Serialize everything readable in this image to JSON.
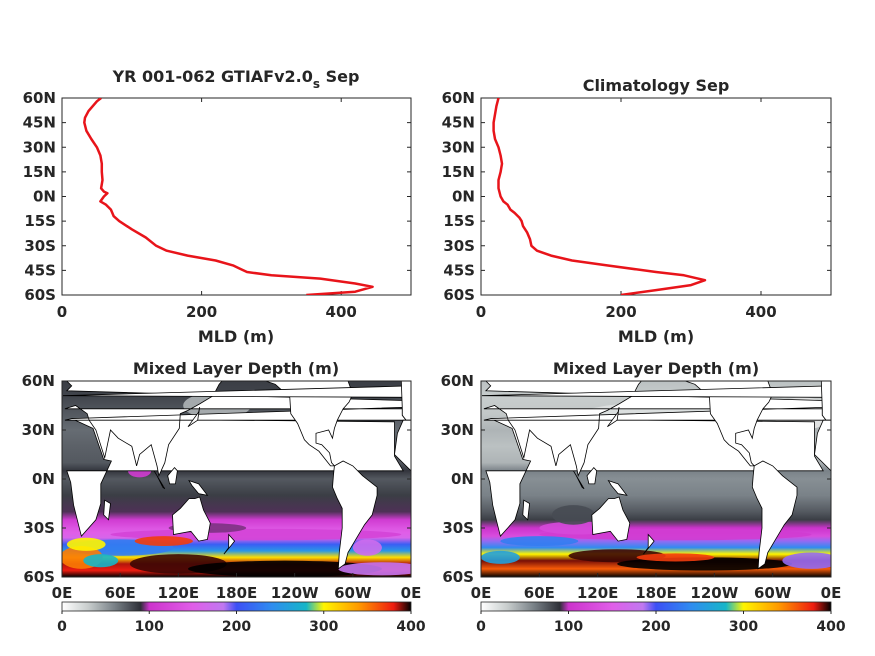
{
  "colors": {
    "profile_line": "#e8141a",
    "axes": "#262626",
    "land": "#ffffff"
  },
  "colormap_stops": [
    {
      "v": 0,
      "c": "#ffffff"
    },
    {
      "v": 30,
      "c": "#c8cdcd"
    },
    {
      "v": 60,
      "c": "#7a8288"
    },
    {
      "v": 90,
      "c": "#2e3038"
    },
    {
      "v": 100,
      "c": "#cc33cc"
    },
    {
      "v": 150,
      "c": "#e05ee8"
    },
    {
      "v": 185,
      "c": "#c078f0"
    },
    {
      "v": 200,
      "c": "#3d4ff5"
    },
    {
      "v": 240,
      "c": "#2f8cf0"
    },
    {
      "v": 280,
      "c": "#16b6c8"
    },
    {
      "v": 300,
      "c": "#fff500"
    },
    {
      "v": 340,
      "c": "#ff9a00"
    },
    {
      "v": 380,
      "c": "#ee1c10"
    },
    {
      "v": 400,
      "c": "#000000"
    }
  ],
  "chart_data": [
    {
      "type": "line",
      "title_main": "YR 001-062 GTIAFv2.0",
      "title_sub": "s",
      "title_tail": " Sep",
      "xlabel": "MLD (m)",
      "ylabel": "",
      "xlim": [
        0,
        500
      ],
      "ylim": [
        -60,
        60
      ],
      "xticks": [
        0,
        200,
        400
      ],
      "xtick_labels": [
        "0",
        "200",
        "400"
      ],
      "yticks": [
        60,
        45,
        30,
        15,
        0,
        -15,
        -30,
        -45,
        -60
      ],
      "ytick_labels": [
        "60N",
        "45N",
        "30N",
        "15N",
        "0N",
        "15S",
        "30S",
        "45S",
        "60S"
      ],
      "series": [
        {
          "x": [
            56,
            50,
            44,
            38,
            33,
            32,
            35,
            42,
            50,
            55,
            57,
            57,
            58,
            56,
            60,
            65,
            60,
            55,
            63,
            70,
            72,
            74,
            82,
            100,
            120,
            135,
            150,
            180,
            220,
            245,
            255,
            265,
            300,
            370,
            420,
            445,
            420,
            350
          ],
          "y": [
            60,
            58,
            55,
            52,
            48,
            45,
            40,
            35,
            30,
            25,
            20,
            15,
            10,
            5,
            3,
            2,
            0,
            -3,
            -5,
            -8,
            -10,
            -12,
            -15,
            -20,
            -25,
            -30,
            -33,
            -36,
            -39,
            -42,
            -44,
            -46,
            -48,
            -50,
            -53,
            -55,
            -58,
            -60
          ]
        }
      ]
    },
    {
      "type": "line",
      "title_main": "Climatology Sep",
      "title_sub": "",
      "title_tail": "",
      "xlabel": "MLD (m)",
      "ylabel": "",
      "xlim": [
        0,
        500
      ],
      "ylim": [
        -60,
        60
      ],
      "xticks": [
        0,
        200,
        400
      ],
      "xtick_labels": [
        "0",
        "200",
        "400"
      ],
      "yticks": [
        60,
        45,
        30,
        15,
        0,
        -15,
        -30,
        -45,
        -60
      ],
      "ytick_labels": [
        "60N",
        "45N",
        "30N",
        "15N",
        "0N",
        "15S",
        "30S",
        "45S",
        "60S"
      ],
      "series": [
        {
          "x": [
            25,
            22,
            20,
            18,
            18,
            20,
            25,
            28,
            30,
            28,
            25,
            25,
            28,
            32,
            38,
            42,
            48,
            55,
            58,
            60,
            66,
            70,
            72,
            80,
            100,
            130,
            180,
            250,
            290,
            320,
            300,
            250,
            200
          ],
          "y": [
            60,
            55,
            50,
            45,
            40,
            35,
            30,
            25,
            20,
            15,
            10,
            5,
            0,
            -3,
            -5,
            -8,
            -10,
            -13,
            -15,
            -18,
            -22,
            -26,
            -30,
            -33,
            -36,
            -39,
            -42,
            -46,
            -48,
            -51,
            -54,
            -57,
            -60
          ]
        }
      ]
    },
    {
      "type": "heatmap",
      "title": "Mixed Layer Depth (m)",
      "xtick_labels": [
        "0E",
        "60E",
        "120E",
        "180E",
        "120W",
        "60W",
        "0E"
      ],
      "ytick_labels": [
        "60N",
        "30N",
        "0N",
        "30S",
        "60S"
      ],
      "colorbar_ticks": [
        "0",
        "100",
        "200",
        "300",
        "400"
      ],
      "colorbar_range": [
        0,
        400
      ],
      "zonal_profile": {
        "lat": [
          60,
          50,
          40,
          30,
          20,
          10,
          5,
          0,
          -10,
          -20,
          -25,
          -30,
          -33,
          -36,
          -40,
          -44,
          -48,
          -52,
          -56,
          -60
        ],
        "value": [
          85,
          82,
          75,
          68,
          72,
          75,
          88,
          75,
          85,
          92,
          110,
          140,
          150,
          160,
          210,
          250,
          310,
          385,
          380,
          400
        ]
      }
    },
    {
      "type": "heatmap",
      "title": "Mixed Layer Depth (m)",
      "xtick_labels": [
        "0E",
        "60E",
        "120E",
        "180E",
        "120W",
        "60W",
        "0E"
      ],
      "ytick_labels": [
        "60N",
        "30N",
        "0N",
        "30S",
        "60S"
      ],
      "colorbar_ticks": [
        "0",
        "100",
        "200",
        "300",
        "400"
      ],
      "colorbar_range": [
        0,
        400
      ],
      "zonal_profile": {
        "lat": [
          60,
          50,
          40,
          30,
          20,
          10,
          5,
          0,
          -10,
          -20,
          -25,
          -30,
          -35,
          -38,
          -42,
          -46,
          -50,
          -55,
          -60
        ],
        "value": [
          35,
          30,
          32,
          40,
          35,
          40,
          60,
          55,
          60,
          75,
          85,
          100,
          130,
          190,
          240,
          300,
          390,
          360,
          400
        ]
      }
    }
  ]
}
